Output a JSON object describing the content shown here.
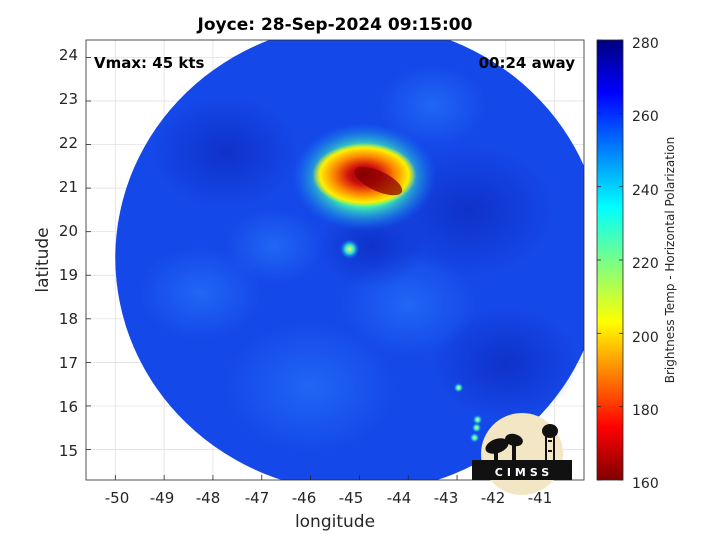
{
  "title": "Joyce: 28-Sep-2024 09:15:00",
  "vmax_label": "Vmax: 45 kts",
  "time_offset_label": "00:24 away",
  "logo": {
    "text": "CIMSS"
  },
  "x_axis": {
    "label": "longitude",
    "ticks": [
      "-50",
      "-49",
      "-48",
      "-47",
      "-46",
      "-45",
      "-44",
      "-43",
      "-42",
      "-41"
    ]
  },
  "y_axis": {
    "label": "latitude",
    "ticks": [
      "24",
      "23",
      "22",
      "21",
      "20",
      "19",
      "18",
      "17",
      "16",
      "15"
    ]
  },
  "colorbar": {
    "label": "Brightness Temp - Horizontal Polarization",
    "ticks": [
      "280",
      "260",
      "240",
      "220",
      "200",
      "180",
      "160"
    ],
    "range": [
      160,
      280
    ],
    "colormap": "jet"
  },
  "map": {
    "x_range": [
      -50.6,
      -40.4
    ],
    "y_range": [
      14.3,
      24.4
    ],
    "grid": true,
    "swath_center": [
      -45.0,
      19.4
    ],
    "swath_radius_deg": 5.0,
    "background_tb": 262,
    "features": [
      {
        "name": "convection-core",
        "lon": -44.9,
        "lat": 21.3,
        "min_tb": 172
      },
      {
        "name": "cold-spot",
        "lon": -45.2,
        "lat": 19.6,
        "min_tb": 228
      },
      {
        "name": "scattered-cells",
        "lon": -42.6,
        "lat": 15.5,
        "min_tb": 235
      }
    ]
  }
}
